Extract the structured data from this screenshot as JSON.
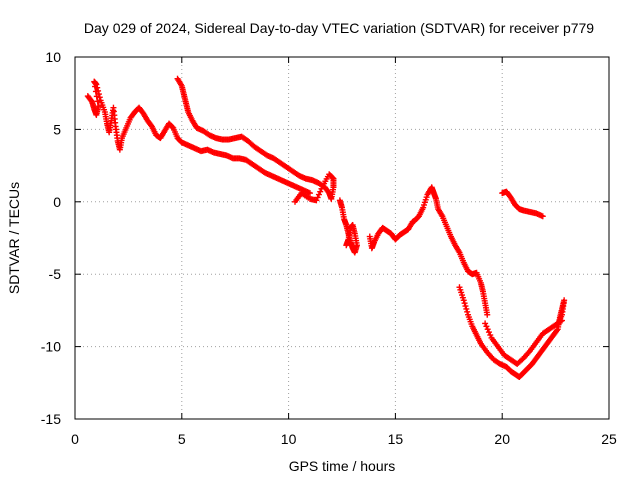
{
  "chart_data": {
    "type": "scatter",
    "title": "Day 029 of 2024, Sidereal Day-to-day VTEC variation (SDTVAR) for receiver p779",
    "xlabel": "GPS time / hours",
    "ylabel": "SDTVAR / TECUs",
    "xlim": [
      0,
      25
    ],
    "ylim": [
      -15,
      10
    ],
    "xticks": [
      0,
      5,
      10,
      15,
      20,
      25
    ],
    "yticks": [
      -15,
      -10,
      -5,
      0,
      5,
      10
    ],
    "grid": true,
    "marker": "plus",
    "color": "#ff0000",
    "series": [
      {
        "name": "segment-1",
        "points": [
          [
            0.6,
            7.3
          ],
          [
            0.8,
            6.9
          ],
          [
            0.9,
            6.4
          ],
          [
            1.0,
            6.0
          ],
          [
            1.1,
            6.6
          ],
          [
            0.9,
            8.3
          ],
          [
            1.0,
            8.1
          ],
          [
            1.2,
            7.0
          ],
          [
            1.4,
            6.2
          ],
          [
            1.5,
            5.4
          ],
          [
            1.6,
            4.8
          ],
          [
            1.7,
            5.6
          ],
          [
            1.8,
            6.5
          ],
          [
            1.9,
            5.2
          ],
          [
            2.0,
            4.2
          ],
          [
            2.1,
            3.6
          ],
          [
            2.2,
            4.4
          ],
          [
            2.4,
            5.1
          ],
          [
            2.6,
            5.8
          ],
          [
            2.8,
            6.2
          ],
          [
            3.0,
            6.5
          ],
          [
            3.2,
            6.1
          ],
          [
            3.4,
            5.6
          ],
          [
            3.6,
            5.2
          ],
          [
            3.8,
            4.6
          ],
          [
            4.0,
            4.4
          ],
          [
            4.2,
            4.9
          ],
          [
            4.4,
            5.4
          ],
          [
            4.6,
            5.1
          ],
          [
            4.8,
            4.4
          ],
          [
            5.0,
            4.1
          ],
          [
            5.3,
            3.9
          ],
          [
            5.6,
            3.7
          ],
          [
            5.9,
            3.5
          ],
          [
            6.2,
            3.6
          ],
          [
            6.5,
            3.4
          ],
          [
            6.8,
            3.3
          ],
          [
            7.1,
            3.2
          ],
          [
            7.4,
            3.0
          ],
          [
            7.7,
            3.0
          ],
          [
            8.0,
            2.9
          ],
          [
            8.3,
            2.6
          ],
          [
            8.6,
            2.3
          ],
          [
            8.9,
            2.0
          ],
          [
            9.2,
            1.8
          ],
          [
            9.5,
            1.6
          ],
          [
            9.8,
            1.4
          ],
          [
            10.1,
            1.2
          ],
          [
            10.4,
            1.0
          ],
          [
            10.7,
            0.8
          ],
          [
            11.0,
            0.6
          ]
        ]
      },
      {
        "name": "segment-2",
        "points": [
          [
            4.8,
            8.5
          ],
          [
            5.0,
            8.0
          ],
          [
            5.1,
            7.4
          ],
          [
            5.2,
            6.8
          ],
          [
            5.3,
            6.2
          ],
          [
            5.5,
            5.6
          ],
          [
            5.7,
            5.1
          ],
          [
            6.0,
            4.9
          ],
          [
            6.3,
            4.6
          ],
          [
            6.6,
            4.4
          ],
          [
            6.9,
            4.3
          ],
          [
            7.2,
            4.3
          ],
          [
            7.5,
            4.4
          ],
          [
            7.8,
            4.5
          ],
          [
            8.1,
            4.2
          ],
          [
            8.4,
            3.8
          ],
          [
            8.7,
            3.5
          ],
          [
            9.0,
            3.2
          ],
          [
            9.3,
            3.0
          ],
          [
            9.6,
            2.7
          ],
          [
            9.9,
            2.4
          ],
          [
            10.2,
            2.1
          ],
          [
            10.5,
            1.8
          ],
          [
            10.8,
            1.6
          ],
          [
            11.1,
            1.5
          ],
          [
            11.4,
            1.3
          ],
          [
            11.7,
            1.0
          ],
          [
            11.9,
            0.6
          ],
          [
            12.0,
            0.2
          ],
          [
            12.1,
            1.0
          ],
          [
            12.1,
            1.6
          ],
          [
            11.9,
            1.9
          ],
          [
            11.6,
            1.1
          ],
          [
            11.3,
            0.1
          ],
          [
            11.0,
            0.2
          ],
          [
            10.6,
            0.6
          ],
          [
            10.3,
            0.0
          ]
        ]
      },
      {
        "name": "segment-3",
        "points": [
          [
            12.4,
            0.1
          ],
          [
            12.5,
            -0.4
          ],
          [
            12.6,
            -1.2
          ],
          [
            12.7,
            -1.6
          ],
          [
            12.8,
            -2.2
          ],
          [
            12.9,
            -2.8
          ],
          [
            13.0,
            -3.2
          ],
          [
            13.1,
            -3.5
          ],
          [
            13.2,
            -3.0
          ],
          [
            13.1,
            -2.2
          ],
          [
            13.0,
            -1.6
          ],
          [
            12.9,
            -1.8
          ],
          [
            12.8,
            -2.6
          ],
          [
            12.7,
            -3.0
          ]
        ]
      },
      {
        "name": "segment-4",
        "points": [
          [
            13.8,
            -2.4
          ],
          [
            13.9,
            -3.2
          ],
          [
            14.0,
            -2.8
          ],
          [
            14.2,
            -2.2
          ],
          [
            14.4,
            -1.8
          ],
          [
            14.6,
            -2.0
          ],
          [
            14.8,
            -2.2
          ],
          [
            15.0,
            -2.6
          ],
          [
            15.2,
            -2.3
          ],
          [
            15.4,
            -2.1
          ],
          [
            15.6,
            -1.9
          ],
          [
            15.8,
            -1.4
          ],
          [
            15.9,
            -1.3
          ],
          [
            16.1,
            -1.0
          ],
          [
            16.3,
            -0.4
          ],
          [
            16.5,
            0.5
          ],
          [
            16.7,
            1.0
          ],
          [
            16.8,
            0.6
          ],
          [
            16.9,
            0.2
          ],
          [
            17.0,
            -0.5
          ],
          [
            17.2,
            -1.0
          ],
          [
            17.4,
            -1.7
          ],
          [
            17.6,
            -2.4
          ],
          [
            17.8,
            -3.0
          ],
          [
            18.0,
            -3.5
          ],
          [
            18.2,
            -4.2
          ],
          [
            18.4,
            -4.8
          ],
          [
            18.6,
            -5.0
          ],
          [
            18.8,
            -4.9
          ],
          [
            19.0,
            -5.6
          ],
          [
            19.1,
            -6.2
          ],
          [
            19.2,
            -7.0
          ],
          [
            19.3,
            -7.8
          ]
        ]
      },
      {
        "name": "segment-5",
        "points": [
          [
            18.0,
            -5.9
          ],
          [
            18.2,
            -6.8
          ],
          [
            18.4,
            -7.8
          ],
          [
            18.6,
            -8.6
          ],
          [
            18.8,
            -9.2
          ],
          [
            19.0,
            -9.8
          ],
          [
            19.3,
            -10.4
          ],
          [
            19.6,
            -10.9
          ],
          [
            19.9,
            -11.2
          ],
          [
            20.2,
            -11.4
          ],
          [
            20.4,
            -11.7
          ],
          [
            20.6,
            -11.9
          ],
          [
            20.8,
            -12.1
          ],
          [
            21.0,
            -11.8
          ],
          [
            21.2,
            -11.5
          ],
          [
            21.4,
            -11.2
          ],
          [
            21.6,
            -10.8
          ],
          [
            21.8,
            -10.4
          ],
          [
            22.0,
            -10.0
          ],
          [
            22.2,
            -9.6
          ],
          [
            22.4,
            -9.2
          ],
          [
            22.6,
            -8.8
          ],
          [
            22.7,
            -8.0
          ],
          [
            22.8,
            -7.4
          ],
          [
            22.9,
            -6.8
          ],
          [
            22.8,
            -7.8
          ],
          [
            22.6,
            -8.5
          ]
        ]
      },
      {
        "name": "segment-6",
        "points": [
          [
            19.2,
            -8.4
          ],
          [
            19.5,
            -9.4
          ],
          [
            19.8,
            -10.0
          ],
          [
            20.1,
            -10.6
          ],
          [
            20.4,
            -10.9
          ],
          [
            20.7,
            -11.2
          ],
          [
            21.0,
            -10.8
          ],
          [
            21.3,
            -10.3
          ],
          [
            21.6,
            -9.7
          ],
          [
            21.9,
            -9.1
          ],
          [
            22.2,
            -8.8
          ],
          [
            22.5,
            -8.5
          ],
          [
            22.8,
            -8.2
          ]
        ]
      },
      {
        "name": "segment-7",
        "points": [
          [
            20.0,
            0.6
          ],
          [
            20.2,
            0.7
          ],
          [
            20.4,
            0.3
          ],
          [
            20.6,
            -0.2
          ],
          [
            20.8,
            -0.5
          ],
          [
            21.0,
            -0.6
          ],
          [
            21.3,
            -0.7
          ],
          [
            21.6,
            -0.8
          ],
          [
            21.9,
            -1.0
          ]
        ]
      }
    ]
  }
}
